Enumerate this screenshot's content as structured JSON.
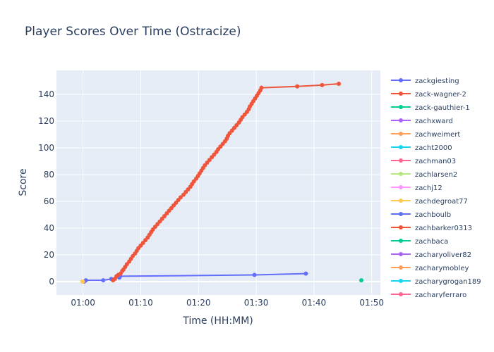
{
  "chart_data": {
    "type": "line",
    "title": "Player Scores Over Time (Ostracize)",
    "xlabel": "Time (HH:MM)",
    "ylabel": "Score",
    "x_unit": "minutes after 01:00",
    "xlim": [
      -4.6,
      51.5
    ],
    "ylim": [
      -10,
      158
    ],
    "x_ticks": [
      {
        "value": 0,
        "label": "01:00"
      },
      {
        "value": 10,
        "label": "01:10"
      },
      {
        "value": 20,
        "label": "01:20"
      },
      {
        "value": 30,
        "label": "01:30"
      },
      {
        "value": 40,
        "label": "01:40"
      },
      {
        "value": 50,
        "label": "01:50"
      }
    ],
    "y_ticks": [
      0,
      20,
      40,
      60,
      80,
      100,
      120,
      140
    ],
    "grid": true,
    "legend_position": "right",
    "series": [
      {
        "name": "zackgiesting",
        "color": "#636efa",
        "points": [
          [
            0.2,
            0
          ],
          [
            0.5,
            1
          ],
          [
            3.5,
            1
          ],
          [
            4.9,
            2
          ],
          [
            6.3,
            3
          ],
          [
            6.4,
            4
          ],
          [
            29.7,
            5
          ],
          [
            38.6,
            6
          ]
        ]
      },
      {
        "name": "zack-wagner-2",
        "color": "#ef553b",
        "points": [
          [
            5.2,
            1
          ],
          [
            5.5,
            2
          ],
          [
            5.8,
            4
          ],
          [
            6.1,
            5
          ],
          [
            6.5,
            6
          ],
          [
            6.8,
            8
          ],
          [
            7.0,
            9
          ],
          [
            7.3,
            11
          ],
          [
            7.6,
            13
          ],
          [
            8.0,
            15
          ],
          [
            8.3,
            17
          ],
          [
            8.6,
            19
          ],
          [
            9.0,
            21
          ],
          [
            9.3,
            23
          ],
          [
            9.6,
            25
          ],
          [
            10.0,
            27
          ],
          [
            10.4,
            29
          ],
          [
            10.8,
            31
          ],
          [
            11.2,
            33
          ],
          [
            11.5,
            35
          ],
          [
            11.8,
            37
          ],
          [
            12.1,
            39
          ],
          [
            12.5,
            41
          ],
          [
            12.9,
            43
          ],
          [
            13.3,
            45
          ],
          [
            13.7,
            47
          ],
          [
            14.1,
            49
          ],
          [
            14.5,
            51
          ],
          [
            14.9,
            53
          ],
          [
            15.3,
            55
          ],
          [
            15.7,
            57
          ],
          [
            16.1,
            59
          ],
          [
            16.5,
            61
          ],
          [
            16.9,
            63
          ],
          [
            17.4,
            65
          ],
          [
            17.8,
            67
          ],
          [
            18.2,
            69
          ],
          [
            18.6,
            71
          ],
          [
            18.9,
            73
          ],
          [
            19.2,
            75
          ],
          [
            19.6,
            77
          ],
          [
            19.9,
            79
          ],
          [
            20.2,
            81
          ],
          [
            20.5,
            83
          ],
          [
            20.8,
            85
          ],
          [
            21.1,
            87
          ],
          [
            21.5,
            89
          ],
          [
            21.9,
            91
          ],
          [
            22.3,
            93
          ],
          [
            22.7,
            95
          ],
          [
            23.1,
            97
          ],
          [
            23.4,
            99
          ],
          [
            23.8,
            101
          ],
          [
            24.2,
            103
          ],
          [
            24.6,
            105
          ],
          [
            24.9,
            107
          ],
          [
            25.1,
            109
          ],
          [
            25.4,
            111
          ],
          [
            25.8,
            113
          ],
          [
            26.2,
            115
          ],
          [
            26.6,
            117
          ],
          [
            27.0,
            119
          ],
          [
            27.3,
            121
          ],
          [
            27.6,
            123
          ],
          [
            28.0,
            125
          ],
          [
            28.4,
            127
          ],
          [
            28.7,
            129
          ],
          [
            28.9,
            131
          ],
          [
            29.2,
            133
          ],
          [
            29.5,
            135
          ],
          [
            29.8,
            137
          ],
          [
            30.1,
            139
          ],
          [
            30.4,
            141
          ],
          [
            30.7,
            143
          ],
          [
            30.9,
            145
          ],
          [
            37.1,
            146
          ],
          [
            41.4,
            147
          ],
          [
            44.3,
            148
          ]
        ]
      },
      {
        "name": "zack-gauthier-1",
        "color": "#00cc96",
        "points": [
          [
            48.2,
            1
          ]
        ]
      },
      {
        "name": "zachxward",
        "color": "#ab63fa",
        "points": []
      },
      {
        "name": "zachweimert",
        "color": "#ffa15a",
        "points": [
          [
            0.0,
            0
          ]
        ]
      },
      {
        "name": "zacht2000",
        "color": "#19d3f3",
        "points": []
      },
      {
        "name": "zachman03",
        "color": "#ff6692",
        "points": []
      },
      {
        "name": "zachlarsen2",
        "color": "#b6e880",
        "points": []
      },
      {
        "name": "zachj12",
        "color": "#ff97ff",
        "points": []
      },
      {
        "name": "zachdegroat77",
        "color": "#fecb52",
        "points": [
          [
            -0.1,
            0
          ]
        ]
      },
      {
        "name": "zachboulb",
        "color": "#636efa",
        "points": []
      },
      {
        "name": "zachbarker0313",
        "color": "#ef553b",
        "points": []
      },
      {
        "name": "zachbaca",
        "color": "#00cc96",
        "points": []
      },
      {
        "name": "zacharyoliver82",
        "color": "#ab63fa",
        "points": []
      },
      {
        "name": "zacharymobley",
        "color": "#ffa15a",
        "points": []
      },
      {
        "name": "zacharygrogan189",
        "color": "#19d3f3",
        "points": []
      },
      {
        "name": "zacharyferraro",
        "color": "#ff6692",
        "points": []
      }
    ]
  },
  "colors": {
    "plot_background": "#e5ecf6",
    "grid": "#ffffff",
    "text": "#2a3f5f"
  }
}
